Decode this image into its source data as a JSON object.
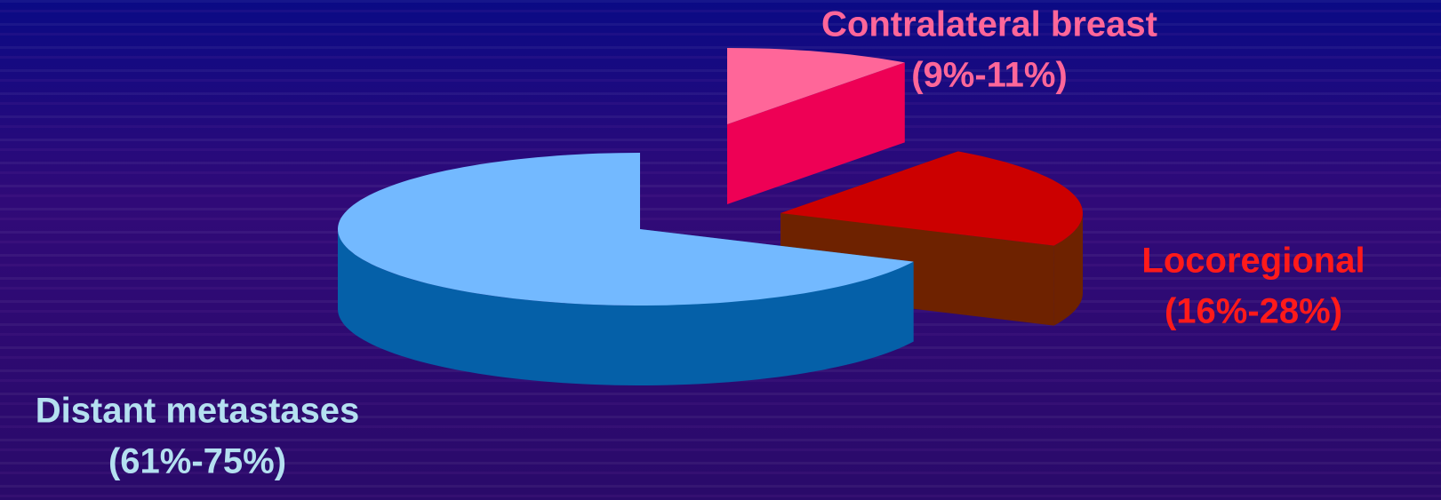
{
  "chart_data": {
    "type": "pie3d",
    "categories": [
      "Contralateral breast",
      "Locoregional",
      "Distant metastases"
    ],
    "low": [
      9,
      16,
      61
    ],
    "high": [
      11,
      28,
      75
    ],
    "value_labels": [
      "(9%-11%)",
      "(16%-28%)",
      "(61%-75%)"
    ],
    "colors": [
      "#ff6699",
      "#cc0000",
      "#73b9ff"
    ],
    "side_colors": [
      "#ee0055",
      "#6e2200",
      "#0560a8"
    ],
    "label_colors": [
      "#ff6699",
      "#ff1a1a",
      "#b4e0f0"
    ]
  }
}
